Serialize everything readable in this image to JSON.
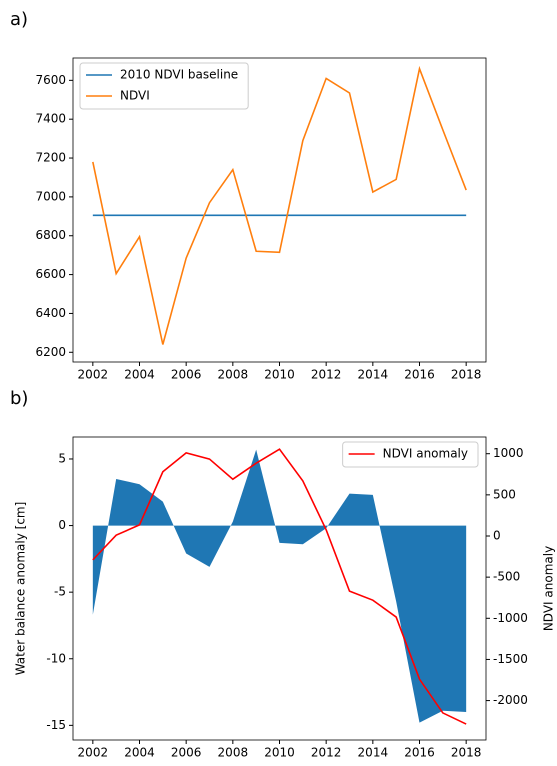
{
  "chart_data": [
    {
      "type": "line",
      "panel_label": "a)",
      "x": [
        2002,
        2003,
        2004,
        2005,
        2006,
        2007,
        2008,
        2009,
        2010,
        2011,
        2012,
        2013,
        2014,
        2015,
        2016,
        2017,
        2018
      ],
      "series": [
        {
          "name": "2010 NDVI baseline",
          "color": "#1f77b4",
          "values": [
            6905,
            6905,
            6905,
            6905,
            6905,
            6905,
            6905,
            6905,
            6905,
            6905,
            6905,
            6905,
            6905,
            6905,
            6905,
            6905,
            6905
          ]
        },
        {
          "name": "NDVI",
          "color": "#ff7f0e",
          "values": [
            7180,
            6605,
            6795,
            6240,
            6685,
            6970,
            7140,
            6720,
            6715,
            7290,
            7610,
            7535,
            7025,
            7090,
            7660,
            7345,
            7035
          ]
        }
      ],
      "xlim": [
        2001.15,
        2018.85
      ],
      "xticks": [
        2002,
        2004,
        2006,
        2008,
        2010,
        2012,
        2014,
        2016,
        2018
      ],
      "ylim": [
        6150,
        7715
      ],
      "yticks": [
        6200,
        6400,
        6600,
        6800,
        7000,
        7200,
        7400,
        7600
      ],
      "legend": "upper left"
    },
    {
      "type": "combo",
      "panel_label": "b)",
      "ylabel": "Water balance anomaly [cm]",
      "y2label": "NDVI anomaly",
      "x": [
        2002,
        2003,
        2004,
        2005,
        2006,
        2007,
        2008,
        2009,
        2010,
        2011,
        2012,
        2013,
        2014,
        2015,
        2016,
        2017,
        2018
      ],
      "series": [
        {
          "type": "area",
          "color": "#1f77b4",
          "values": [
            -6.7,
            3.5,
            3.1,
            1.8,
            -2.1,
            -3.1,
            0.3,
            5.7,
            -1.3,
            -1.4,
            -0.2,
            2.4,
            2.3,
            -5.7,
            -14.8,
            -13.9,
            -14.0
          ]
        },
        {
          "type": "line",
          "name": "NDVI anomaly",
          "color": "#ff0000",
          "axis": "y2",
          "values": [
            -290,
            10,
            135,
            780,
            1010,
            935,
            690,
            885,
            1055,
            670,
            75,
            -670,
            -780,
            -985,
            -1740,
            -2150,
            -2285
          ]
        }
      ],
      "xlim": [
        2001.15,
        2018.85
      ],
      "xticks": [
        2002,
        2004,
        2006,
        2008,
        2010,
        2012,
        2014,
        2016,
        2018
      ],
      "ylim": [
        -16.1,
        6.65
      ],
      "yticks": [
        -15,
        -10,
        -5,
        0,
        5
      ],
      "y2lim": [
        -2479,
        1203
      ],
      "y2ticks": [
        -2000,
        -1500,
        -1000,
        -500,
        0,
        500,
        1000
      ],
      "legend": "upper right"
    }
  ]
}
